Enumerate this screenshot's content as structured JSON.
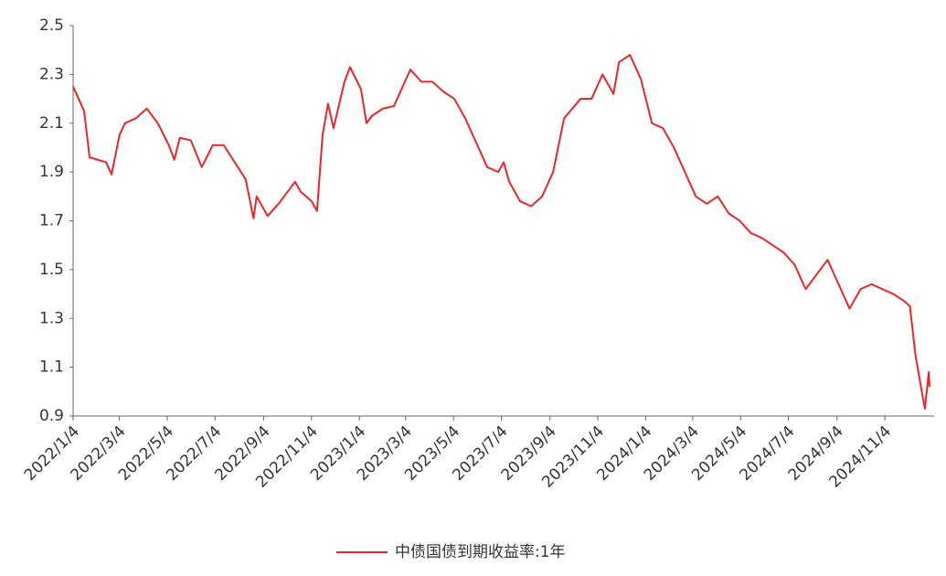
{
  "chart_data": {
    "type": "line",
    "x": [
      "2022/1/4",
      "2022/1/18",
      "2022/1/25",
      "2022/2/15",
      "2022/2/22",
      "2022/3/4",
      "2022/3/11",
      "2022/3/25",
      "2022/4/8",
      "2022/4/22",
      "2022/5/6",
      "2022/5/13",
      "2022/5/20",
      "2022/6/3",
      "2022/6/17",
      "2022/7/1",
      "2022/7/15",
      "2022/7/29",
      "2022/8/12",
      "2022/8/22",
      "2022/8/26",
      "2022/9/9",
      "2022/9/23",
      "2022/10/14",
      "2022/10/21",
      "2022/11/4",
      "2022/11/11",
      "2022/11/18",
      "2022/11/25",
      "2022/12/2",
      "2022/12/16",
      "2022/12/23",
      "2023/1/6",
      "2023/1/13",
      "2023/1/20",
      "2023/2/3",
      "2023/2/17",
      "2023/3/3",
      "2023/3/10",
      "2023/3/24",
      "2023/4/7",
      "2023/4/21",
      "2023/5/5",
      "2023/5/19",
      "2023/6/2",
      "2023/6/16",
      "2023/6/30",
      "2023/7/7",
      "2023/7/14",
      "2023/7/28",
      "2023/8/11",
      "2023/8/25",
      "2023/9/8",
      "2023/9/22",
      "2023/10/13",
      "2023/10/27",
      "2023/11/10",
      "2023/11/24",
      "2023/12/1",
      "2023/12/15",
      "2023/12/29",
      "2024/1/12",
      "2024/1/26",
      "2024/2/9",
      "2024/2/23",
      "2024/3/8",
      "2024/3/22",
      "2024/4/5",
      "2024/4/19",
      "2024/5/3",
      "2024/5/17",
      "2024/5/31",
      "2024/6/14",
      "2024/6/28",
      "2024/7/12",
      "2024/7/26",
      "2024/8/9",
      "2024/8/23",
      "2024/9/6",
      "2024/9/20",
      "2024/10/4",
      "2024/10/18",
      "2024/11/1",
      "2024/11/15",
      "2024/11/29",
      "2024/12/6",
      "2024/12/13",
      "2024/12/20",
      "2024/12/25",
      "2024/12/30",
      "2024/12/31"
    ],
    "series": [
      {
        "name": "中债国债到期收益率:1年",
        "color": "#e8262a",
        "values": [
          2.25,
          2.15,
          1.96,
          1.94,
          1.89,
          2.05,
          2.1,
          2.12,
          2.16,
          2.1,
          2.01,
          1.95,
          2.04,
          2.03,
          1.92,
          2.01,
          2.01,
          1.94,
          1.87,
          1.71,
          1.8,
          1.72,
          1.77,
          1.86,
          1.82,
          1.78,
          1.74,
          2.05,
          2.18,
          2.08,
          2.27,
          2.33,
          2.24,
          2.1,
          2.13,
          2.16,
          2.17,
          2.27,
          2.32,
          2.27,
          2.27,
          2.23,
          2.2,
          2.12,
          2.02,
          1.92,
          1.9,
          1.94,
          1.86,
          1.78,
          1.76,
          1.8,
          1.9,
          2.12,
          2.2,
          2.2,
          2.3,
          2.22,
          2.35,
          2.38,
          2.28,
          2.1,
          2.08,
          2.0,
          1.9,
          1.8,
          1.77,
          1.8,
          1.73,
          1.7,
          1.65,
          1.63,
          1.6,
          1.57,
          1.52,
          1.42,
          1.48,
          1.54,
          1.44,
          1.34,
          1.42,
          1.44,
          1.42,
          1.4,
          1.37,
          1.35,
          1.15,
          1.02,
          0.93,
          1.08,
          1.02
        ]
      }
    ],
    "xlim": [
      "2022/1/4",
      "2024/12/31"
    ],
    "xticks": [
      "2022/1/4",
      "2022/3/4",
      "2022/5/4",
      "2022/7/4",
      "2022/9/4",
      "2022/11/4",
      "2023/1/4",
      "2023/3/4",
      "2023/5/4",
      "2023/7/4",
      "2023/9/4",
      "2023/11/4",
      "2024/1/4",
      "2024/3/4",
      "2024/5/4",
      "2024/7/4",
      "2024/9/4",
      "2024/11/4"
    ],
    "ylim": [
      0.9,
      2.5
    ],
    "yticks": [
      0.9,
      1.1,
      1.3,
      1.5,
      1.7,
      1.9,
      2.1,
      2.3,
      2.5
    ],
    "grid": false,
    "legend": "bottom"
  }
}
